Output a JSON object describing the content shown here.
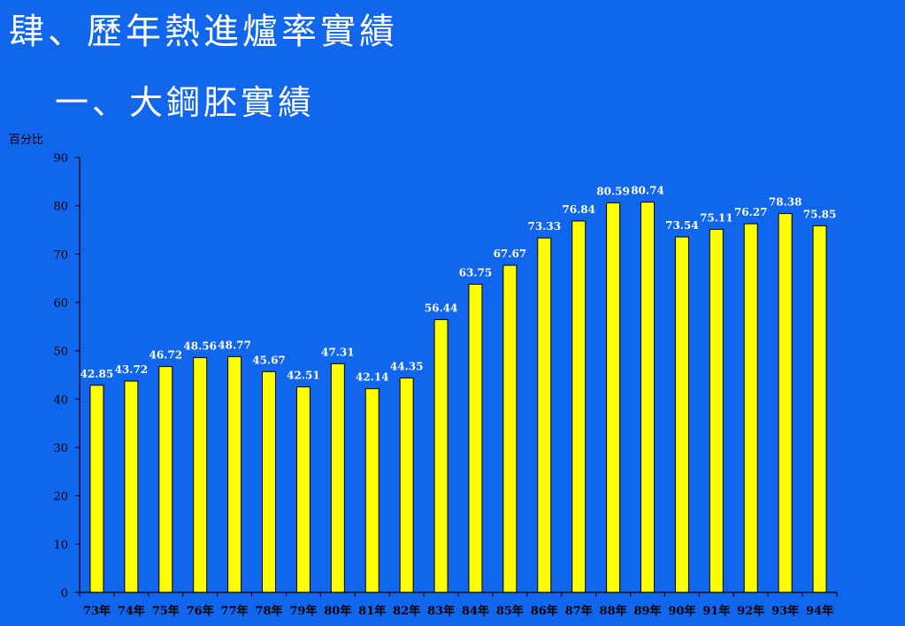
{
  "title": "肆、歷年熱進爐率實績",
  "subtitle": "一、大鋼胚實績",
  "colors": {
    "background": "#1166ee",
    "bar_fill": "#ffff00",
    "bar_stroke": "#000000",
    "text": "#ffffff",
    "axis": "#000000",
    "tick_label": "#000000"
  },
  "chart_data": {
    "type": "bar",
    "title": "",
    "xlabel": "",
    "ylabel": "百分比",
    "ylim": [
      0,
      90
    ],
    "yticks": [
      0,
      10,
      20,
      30,
      40,
      50,
      60,
      70,
      80,
      90
    ],
    "grid": false,
    "data_labels": true,
    "categories": [
      "73年",
      "74年",
      "75年",
      "76年",
      "77年",
      "78年",
      "79年",
      "80年",
      "81年",
      "82年",
      "83年",
      "84年",
      "85年",
      "86年",
      "87年",
      "88年",
      "89年",
      "90年",
      "91年",
      "92年",
      "93年",
      "94年"
    ],
    "values": [
      42.85,
      43.72,
      46.72,
      48.56,
      48.77,
      45.67,
      42.51,
      47.31,
      42.14,
      44.35,
      56.44,
      63.75,
      67.67,
      73.33,
      76.84,
      80.59,
      80.74,
      73.54,
      75.11,
      76.27,
      78.38,
      75.85
    ],
    "value_labels": [
      "42.85",
      "43.72",
      "46.72",
      "48.56",
      "48.77",
      "45.67",
      "42.51",
      "47.31",
      "42.14",
      "44.35",
      "56.44",
      "63.75",
      "67.67",
      "73.33",
      "76.84",
      "80.59",
      "80.74",
      "73.54",
      "75.11",
      "76.27",
      "78.38",
      "75.85"
    ]
  }
}
